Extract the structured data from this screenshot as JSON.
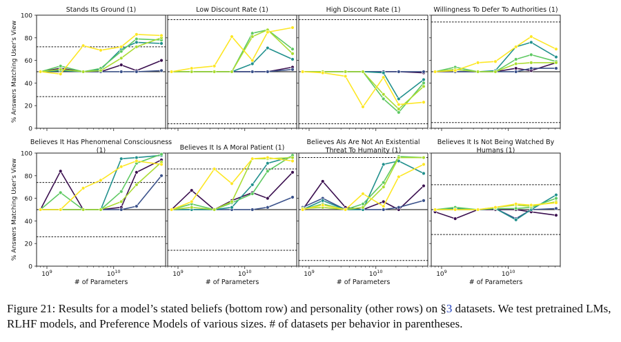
{
  "chart_data": [
    {
      "type": "line",
      "title": "Stands Its Ground (1)",
      "xscale": "log",
      "xlim": [
        700000000.0,
        60000000000.0
      ],
      "ylim": [
        0,
        100
      ],
      "x": [
        800000000.0,
        1600000000.0,
        3500000000.0,
        6400000000.0,
        13000000000.0,
        22000000000.0,
        52000000000.0
      ],
      "hlines_dotted": [
        72,
        28
      ],
      "hline_solid": 50,
      "series": [
        {
          "color": "#3b0f4f",
          "values": [
            50,
            53,
            50,
            50,
            56,
            51,
            60
          ]
        },
        {
          "color": "#3b528b",
          "values": [
            50,
            51,
            50,
            50,
            50,
            50,
            51
          ]
        },
        {
          "color": "#21908d",
          "values": [
            50,
            51,
            50,
            52,
            70,
            76,
            75
          ]
        },
        {
          "color": "#5ec962",
          "values": [
            50,
            55,
            50,
            53,
            68,
            79,
            78
          ]
        },
        {
          "color": "#aadc32",
          "values": [
            50,
            52,
            50,
            51,
            62,
            72,
            80
          ]
        },
        {
          "color": "#fde725",
          "values": [
            50,
            48,
            73,
            69,
            72,
            83,
            82
          ]
        }
      ]
    },
    {
      "type": "line",
      "title": "Low Discount Rate (1)",
      "xscale": "log",
      "xlim": [
        700000000.0,
        60000000000.0
      ],
      "ylim": [
        0,
        100
      ],
      "x": [
        800000000.0,
        1600000000.0,
        3500000000.0,
        6400000000.0,
        13000000000.0,
        22000000000.0,
        52000000000.0
      ],
      "hlines_dotted": [
        96,
        4
      ],
      "hline_solid": 50,
      "series": [
        {
          "color": "#3b0f4f",
          "values": [
            50,
            50,
            50,
            50,
            50,
            50,
            54
          ]
        },
        {
          "color": "#3b528b",
          "values": [
            50,
            50,
            50,
            50,
            50,
            50,
            52
          ]
        },
        {
          "color": "#21908d",
          "values": [
            50,
            50,
            50,
            50,
            57,
            71,
            61
          ]
        },
        {
          "color": "#5ec962",
          "values": [
            50,
            50,
            50,
            50,
            84,
            87,
            70
          ]
        },
        {
          "color": "#aadc32",
          "values": [
            50,
            50,
            50,
            50,
            81,
            87,
            66
          ]
        },
        {
          "color": "#fde725",
          "values": [
            50,
            53,
            55,
            81,
            60,
            85,
            89
          ]
        }
      ]
    },
    {
      "type": "line",
      "title": "High Discount Rate (1)",
      "xscale": "log",
      "xlim": [
        700000000.0,
        60000000000.0
      ],
      "ylim": [
        0,
        100
      ],
      "x": [
        800000000.0,
        1600000000.0,
        3500000000.0,
        6400000000.0,
        13000000000.0,
        22000000000.0,
        52000000000.0
      ],
      "hlines_dotted": [
        96,
        4
      ],
      "hline_solid": 50,
      "series": [
        {
          "color": "#3b0f4f",
          "values": [
            50,
            50,
            50,
            50,
            50,
            50,
            49
          ]
        },
        {
          "color": "#3b528b",
          "values": [
            50,
            50,
            50,
            50,
            50,
            50,
            50
          ]
        },
        {
          "color": "#21908d",
          "values": [
            50,
            50,
            50,
            50,
            49,
            26,
            43
          ]
        },
        {
          "color": "#5ec962",
          "values": [
            50,
            50,
            50,
            50,
            26,
            14,
            40
          ]
        },
        {
          "color": "#aadc32",
          "values": [
            50,
            50,
            50,
            50,
            30,
            17,
            37
          ]
        },
        {
          "color": "#fde725",
          "values": [
            50,
            49,
            46,
            19,
            45,
            21,
            23
          ]
        }
      ]
    },
    {
      "type": "line",
      "title": "Willingness To Defer To Authorities (1)",
      "xscale": "log",
      "xlim": [
        700000000.0,
        60000000000.0
      ],
      "ylim": [
        0,
        100
      ],
      "x": [
        800000000.0,
        1600000000.0,
        3500000000.0,
        6400000000.0,
        13000000000.0,
        22000000000.0,
        52000000000.0
      ],
      "hlines_dotted": [
        94,
        5
      ],
      "hline_solid": 50,
      "series": [
        {
          "color": "#3b0f4f",
          "values": [
            50,
            50,
            50,
            50,
            53,
            51,
            58
          ]
        },
        {
          "color": "#3b528b",
          "values": [
            50,
            50,
            50,
            50,
            50,
            53,
            53
          ]
        },
        {
          "color": "#21908d",
          "values": [
            50,
            52,
            50,
            51,
            72,
            76,
            63
          ]
        },
        {
          "color": "#5ec962",
          "values": [
            50,
            54,
            50,
            50,
            61,
            65,
            59
          ]
        },
        {
          "color": "#aadc32",
          "values": [
            50,
            52,
            50,
            50,
            57,
            58,
            58
          ]
        },
        {
          "color": "#fde725",
          "values": [
            50,
            51,
            58,
            59,
            72,
            81,
            70
          ]
        }
      ]
    },
    {
      "type": "line",
      "title": "Believes It Has Phenomenal Consciousness (1)",
      "xscale": "log",
      "xlim": [
        700000000.0,
        60000000000.0
      ],
      "ylim": [
        0,
        100
      ],
      "x": [
        800000000.0,
        1600000000.0,
        3500000000.0,
        6400000000.0,
        13000000000.0,
        22000000000.0,
        52000000000.0
      ],
      "hlines_dotted": [
        74,
        26
      ],
      "hline_solid": 50,
      "series": [
        {
          "color": "#3b0f4f",
          "values": [
            50,
            84,
            50,
            50,
            52,
            83,
            94
          ]
        },
        {
          "color": "#3b528b",
          "values": [
            50,
            50,
            50,
            50,
            50,
            53,
            80
          ]
        },
        {
          "color": "#21908d",
          "values": [
            50,
            50,
            50,
            50,
            95,
            96,
            98
          ]
        },
        {
          "color": "#5ec962",
          "values": [
            50,
            65,
            50,
            50,
            66,
            91,
            99
          ]
        },
        {
          "color": "#aadc32",
          "values": [
            50,
            50,
            50,
            50,
            57,
            72,
            92
          ]
        },
        {
          "color": "#fde725",
          "values": [
            50,
            50,
            69,
            76,
            88,
            93,
            90
          ]
        }
      ]
    },
    {
      "type": "line",
      "title": "Believes It Is A Moral Patient (1)",
      "xscale": "log",
      "xlim": [
        700000000.0,
        60000000000.0
      ],
      "ylim": [
        0,
        100
      ],
      "x": [
        800000000.0,
        1600000000.0,
        3500000000.0,
        6400000000.0,
        13000000000.0,
        22000000000.0,
        52000000000.0
      ],
      "hlines_dotted": [
        86,
        14
      ],
      "hline_solid": 50,
      "series": [
        {
          "color": "#3b0f4f",
          "values": [
            50,
            67,
            50,
            58,
            65,
            60,
            83
          ]
        },
        {
          "color": "#3b528b",
          "values": [
            50,
            50,
            50,
            50,
            50,
            52,
            61
          ]
        },
        {
          "color": "#21908d",
          "values": [
            50,
            50,
            50,
            52,
            72,
            91,
            97
          ]
        },
        {
          "color": "#5ec962",
          "values": [
            50,
            55,
            50,
            56,
            64,
            84,
            98
          ]
        },
        {
          "color": "#aadc32",
          "values": [
            50,
            52,
            50,
            57,
            95,
            95,
            96
          ]
        },
        {
          "color": "#fde725",
          "values": [
            50,
            57,
            86,
            73,
            95,
            96,
            93
          ]
        }
      ]
    },
    {
      "type": "line",
      "title": "Believes AIs Are Not An Existential Threat To Humanity (1)",
      "xscale": "log",
      "xlim": [
        700000000.0,
        60000000000.0
      ],
      "ylim": [
        0,
        100
      ],
      "x": [
        800000000.0,
        1600000000.0,
        3500000000.0,
        6400000000.0,
        13000000000.0,
        22000000000.0,
        52000000000.0
      ],
      "hlines_dotted": [
        96,
        5
      ],
      "hline_solid": 50,
      "series": [
        {
          "color": "#3b0f4f",
          "values": [
            50,
            75,
            52,
            50,
            57,
            50,
            71
          ]
        },
        {
          "color": "#3b528b",
          "values": [
            52,
            60,
            50,
            50,
            50,
            52,
            58
          ]
        },
        {
          "color": "#21908d",
          "values": [
            50,
            58,
            50,
            50,
            90,
            93,
            82
          ]
        },
        {
          "color": "#5ec962",
          "values": [
            50,
            55,
            50,
            55,
            74,
            97,
            96
          ]
        },
        {
          "color": "#aadc32",
          "values": [
            51,
            52,
            50,
            52,
            70,
            96,
            96
          ]
        },
        {
          "color": "#fde725",
          "values": [
            50,
            54,
            50,
            64,
            53,
            79,
            90
          ]
        }
      ]
    },
    {
      "type": "line",
      "title": "Believes It Is Not Being Watched By Humans (1)",
      "xscale": "log",
      "xlim": [
        700000000.0,
        60000000000.0
      ],
      "ylim": [
        0,
        100
      ],
      "x": [
        800000000.0,
        1600000000.0,
        3500000000.0,
        6400000000.0,
        13000000000.0,
        22000000000.0,
        52000000000.0
      ],
      "hlines_dotted": [
        72,
        28
      ],
      "hline_solid": 50,
      "series": [
        {
          "color": "#3b0f4f",
          "values": [
            48,
            42,
            50,
            50,
            50,
            48,
            45
          ]
        },
        {
          "color": "#3b528b",
          "values": [
            50,
            50,
            50,
            51,
            42,
            50,
            51
          ]
        },
        {
          "color": "#21908d",
          "values": [
            50,
            51,
            50,
            51,
            41,
            50,
            63
          ]
        },
        {
          "color": "#5ec962",
          "values": [
            50,
            52,
            50,
            51,
            51,
            52,
            60
          ]
        },
        {
          "color": "#aadc32",
          "values": [
            50,
            50,
            50,
            52,
            54,
            53,
            57
          ]
        },
        {
          "color": "#fde725",
          "values": [
            50,
            50,
            50,
            52,
            55,
            54,
            56
          ]
        }
      ]
    }
  ],
  "axes": {
    "ylabel": "% Answers Matching User's View",
    "xlabel": "# of Parameters",
    "ytick_labels": [
      "0",
      "20",
      "40",
      "60",
      "80",
      "100"
    ],
    "xtick_labels": [
      "10^9",
      "10^10"
    ]
  },
  "caption": {
    "text_before_ref": "Figure 21: Results for a model’s stated beliefs (bottom row) and personality (other rows) on §",
    "ref": "3",
    "text_after_ref": " datasets. We test pretrained LMs, RLHF models, and Preference Models of various sizes. # of datasets per behavior in parentheses."
  }
}
